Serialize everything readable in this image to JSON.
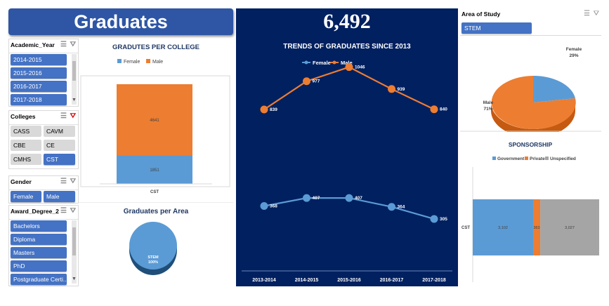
{
  "header": {
    "title": "Graduates",
    "total": "6,492"
  },
  "slicers": {
    "academic_year": {
      "title": "Academic_Year",
      "items": [
        "2014-2015",
        "2015-2016",
        "2016-2017",
        "2017-2018"
      ]
    },
    "colleges": {
      "title": "Colleges",
      "items": [
        "CASS",
        "CAVM",
        "CBE",
        "CE",
        "CMHS",
        "CST"
      ],
      "selected": "CST"
    },
    "gender": {
      "title": "Gender",
      "items": [
        "Female",
        "Male"
      ]
    },
    "award_degree": {
      "title": "Award_Degree_2",
      "items": [
        "Bachelors",
        "Diploma",
        "Masters",
        "PhD",
        "Postgraduate Certi..."
      ]
    },
    "area_of_study": {
      "title": "Area of Study",
      "items": [
        "STEM"
      ]
    }
  },
  "colors": {
    "female": "#5b9bd5",
    "male": "#ed7d31",
    "government": "#5b9bd5",
    "private": "#ed7d31",
    "unspecified": "#a5a5a5",
    "navy": "#002060",
    "accent": "#4472c4"
  },
  "icons": {
    "multi_select": "multi-select-icon",
    "clear_filter": "clear-filter-icon"
  },
  "chart_data": [
    {
      "type": "bar",
      "title": "GRADUTES PER COLLEGE",
      "categories": [
        "CST"
      ],
      "stacked": true,
      "legend": "top",
      "series": [
        {
          "name": "Female",
          "values": [
            1851
          ]
        },
        {
          "name": "Male",
          "values": [
            4641
          ]
        }
      ]
    },
    {
      "type": "line",
      "title": "TRENDS OF GRADUATES SINCE 2013",
      "categories": [
        "2013-2014",
        "2014-2015",
        "2015-2016",
        "2016-2017",
        "2017-2018"
      ],
      "legend": "top",
      "series": [
        {
          "name": "Female",
          "values": [
            368,
            407,
            407,
            364,
            305
          ]
        },
        {
          "name": "Male",
          "values": [
            839,
            977,
            1046,
            939,
            840
          ]
        }
      ]
    },
    {
      "type": "pie",
      "title": "",
      "labels": [
        "Female",
        "Male"
      ],
      "values": [
        29,
        71
      ],
      "value_labels": [
        "29%",
        "71%"
      ]
    },
    {
      "type": "pie",
      "title": "Graduates per Area",
      "labels": [
        "STEM"
      ],
      "values": [
        100
      ],
      "value_labels": [
        "100%"
      ]
    },
    {
      "type": "bar",
      "orientation": "horizontal",
      "stacked": true,
      "title": "SPONSORSHIP",
      "categories": [
        "CST"
      ],
      "legend": "top",
      "series": [
        {
          "name": "Government",
          "values": [
            3102
          ]
        },
        {
          "name": "Private",
          "values": [
            363
          ]
        },
        {
          "name": "Unspecified",
          "values": [
            3027
          ]
        }
      ],
      "value_labels": [
        "3,102",
        "363",
        "3,027"
      ]
    }
  ]
}
